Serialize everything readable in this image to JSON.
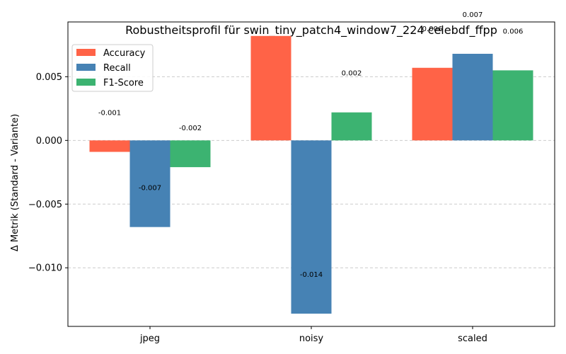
{
  "chart_data": {
    "type": "bar",
    "title": "Robustheitsprofil für swin_tiny_patch4_window7_224 celebdf_ffpp",
    "xlabel": "",
    "ylabel": "Δ Metrik (Standard - Variante)",
    "categories": [
      "jpeg",
      "noisy",
      "scaled"
    ],
    "series": [
      {
        "name": "Accuracy",
        "color": "#ff6347",
        "values": [
          -0.0009,
          0.0082,
          0.0057
        ],
        "labels": [
          "-0.001",
          "0.008",
          "0.006"
        ]
      },
      {
        "name": "Recall",
        "color": "#4682b4",
        "values": [
          -0.0068,
          -0.0136,
          0.0068
        ],
        "labels": [
          "-0.007",
          "-0.014",
          "0.007"
        ]
      },
      {
        "name": "F1-Score",
        "color": "#3cb371",
        "values": [
          -0.0021,
          0.0022,
          0.0055
        ],
        "labels": [
          "-0.002",
          "0.002",
          "0.006"
        ]
      }
    ],
    "ylim": [
      -0.0146,
      0.0093
    ],
    "yticks": [
      -0.01,
      -0.005,
      0.0,
      0.005
    ],
    "ytick_labels": [
      "−0.010",
      "−0.005",
      "0.000",
      "0.005"
    ],
    "grid": "y-dashed",
    "legend_position": "top-left"
  }
}
